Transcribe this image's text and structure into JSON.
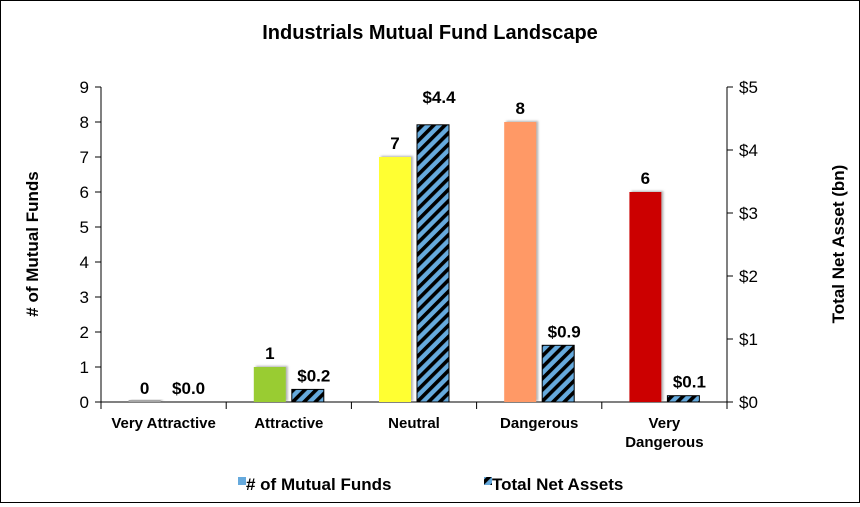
{
  "chart_data": {
    "type": "bar",
    "title": "Industrials Mutual Fund Landscape",
    "categories": [
      [
        "Very Attractive"
      ],
      [
        "Attractive"
      ],
      [
        "Neutral"
      ],
      [
        "Dangerous"
      ],
      [
        "Very",
        "Dangerous"
      ]
    ],
    "series": [
      {
        "name": "# of Mutual Funds",
        "axis": "left",
        "values": [
          0,
          1,
          7,
          8,
          6
        ],
        "labels": [
          "0",
          "1",
          "7",
          "8",
          "6"
        ],
        "colors": [
          "#a6a6a6",
          "#99cc33",
          "#ffff33",
          "#ff9966",
          "#cc0000"
        ],
        "legend_color": "#66aadd"
      },
      {
        "name": "Total Net Assets",
        "axis": "right",
        "values": [
          0.0,
          0.2,
          4.4,
          0.9,
          0.1
        ],
        "labels": [
          "$0.0",
          "$0.2",
          "$4.4",
          "$0.9",
          "$0.1"
        ],
        "colors": [
          "#66aadd",
          "#000000"
        ]
      }
    ],
    "ylabel_left": "# of Mutual Funds",
    "ylabel_right": "Total Net Asset (bn)",
    "ylim_left": [
      0,
      9
    ],
    "ylim_right": [
      0,
      5
    ],
    "yticks_left": [
      "0",
      "1",
      "2",
      "3",
      "4",
      "5",
      "6",
      "7",
      "8",
      "9"
    ],
    "yticks_right": [
      "$0",
      "$1",
      "$2",
      "$3",
      "$4",
      "$5"
    ],
    "legend_position": "bottom",
    "grid": false
  }
}
